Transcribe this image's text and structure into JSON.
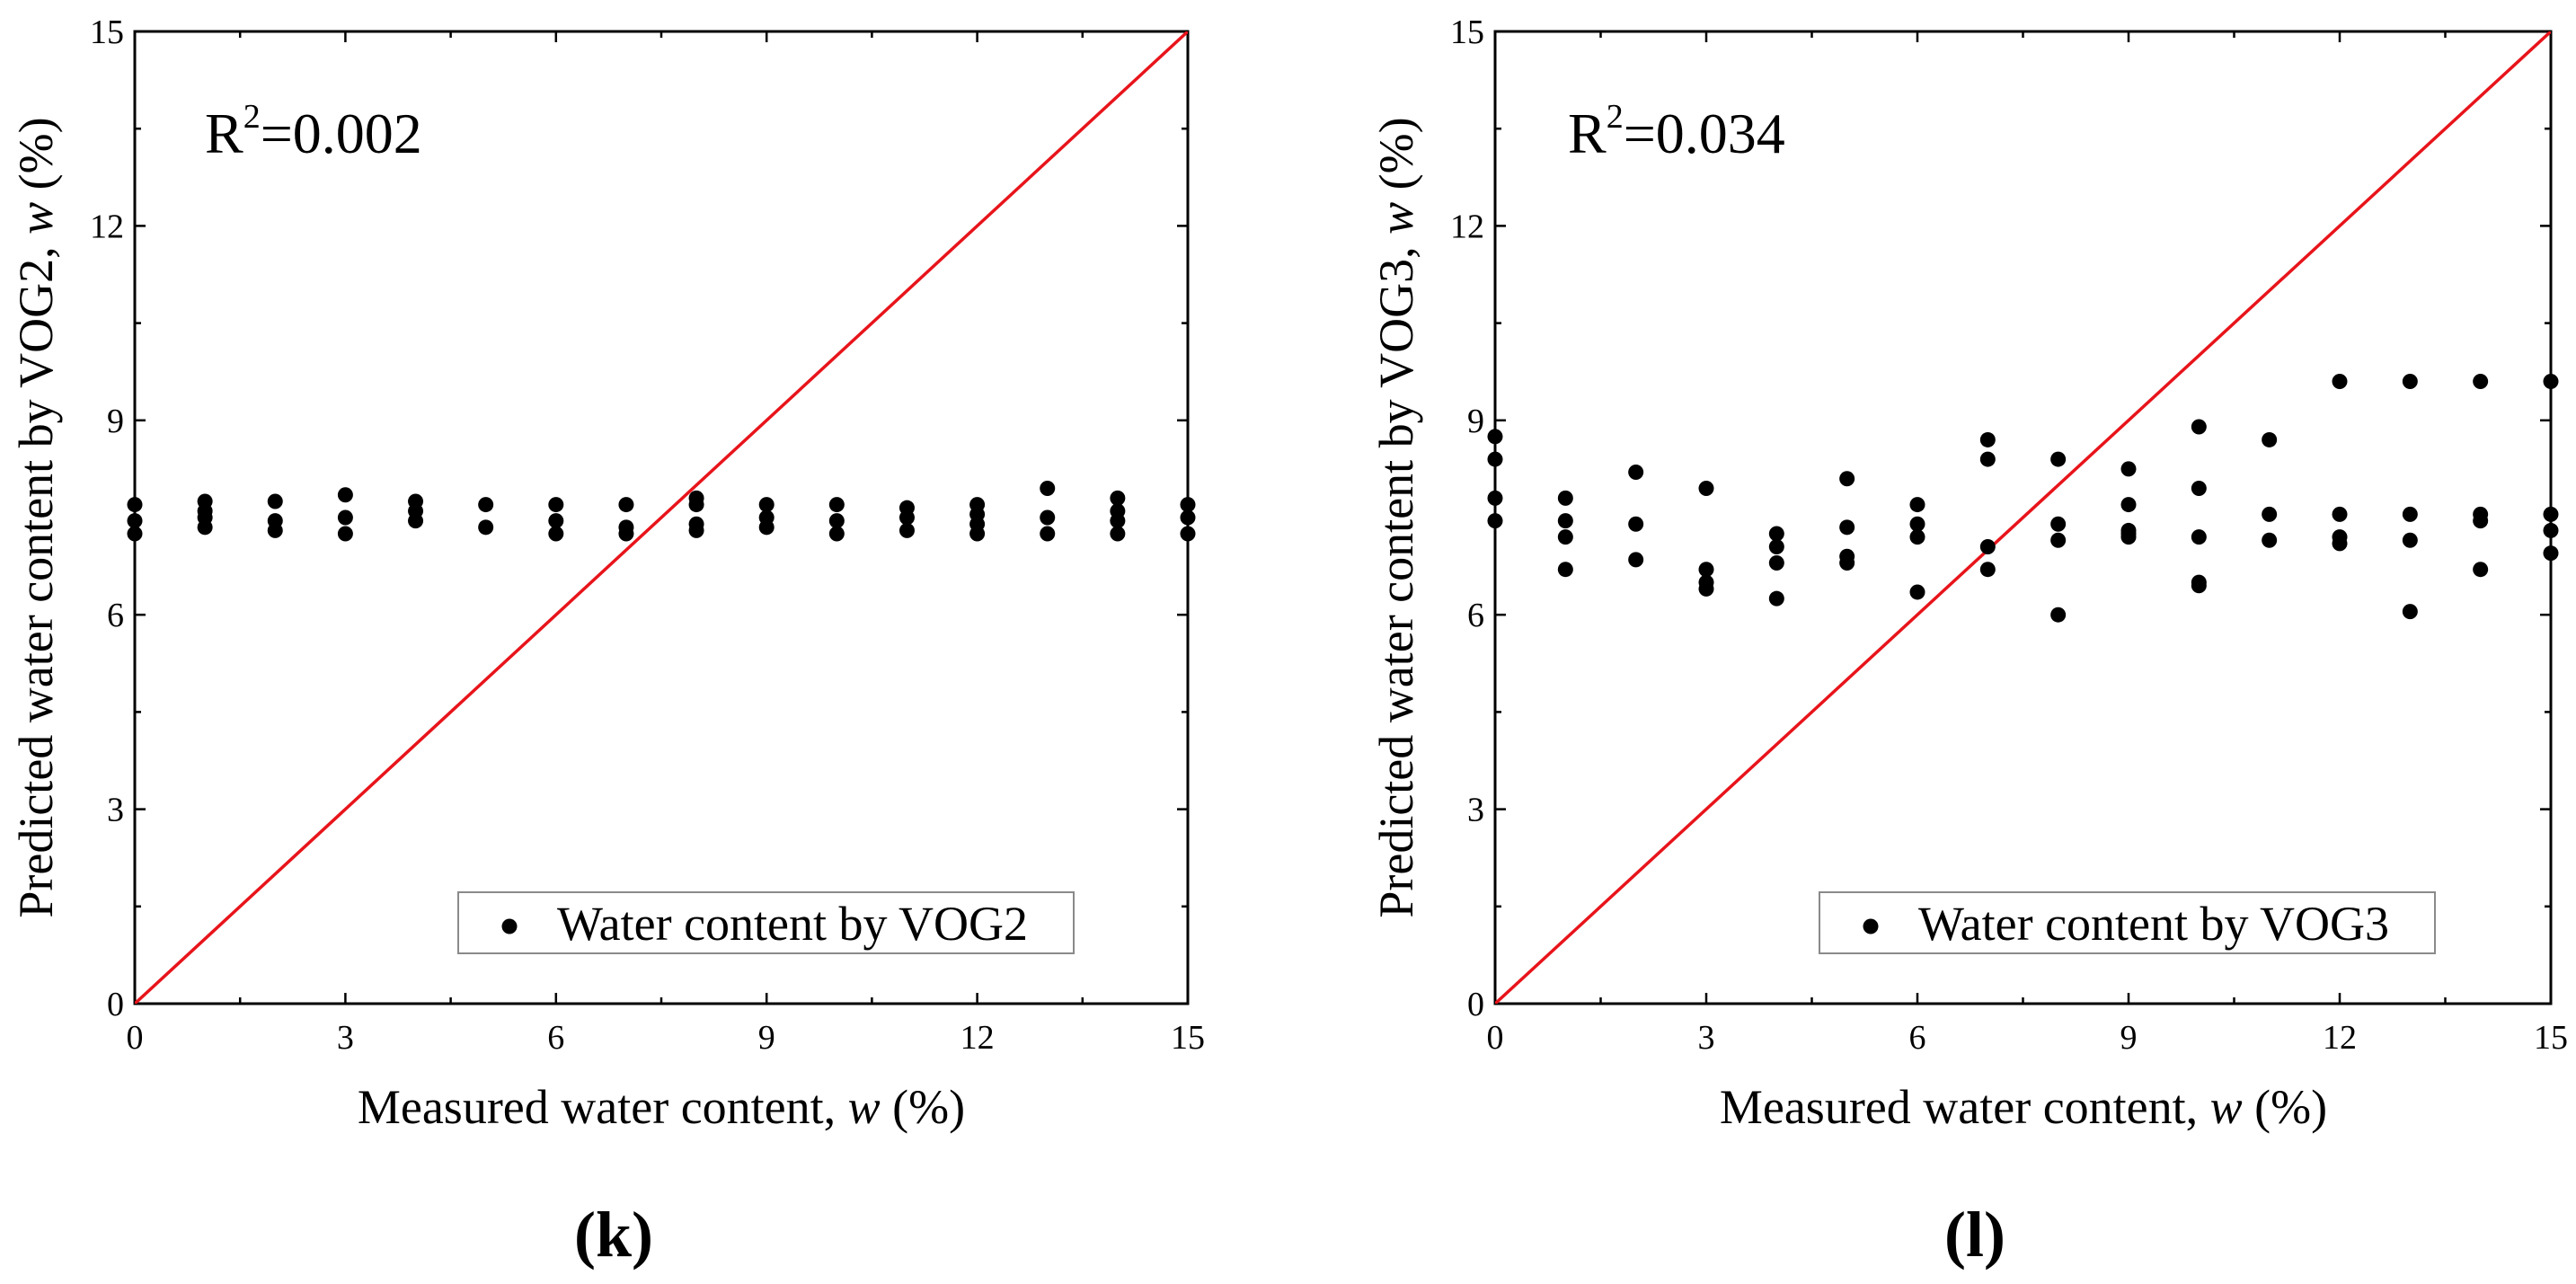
{
  "chart_data": [
    {
      "type": "scatter",
      "panel_label": "(k)",
      "xlabel": "Measured water content, ",
      "xlabel_var": "w",
      "xlabel_unit": " (%)",
      "ylabel": "Predicted water content by VOG2, ",
      "ylabel_var": "w",
      "ylabel_unit": " (%)",
      "xlim": [
        0,
        15
      ],
      "ylim": [
        0,
        15
      ],
      "xticks": [
        "0",
        "3",
        "6",
        "9",
        "12",
        "15"
      ],
      "yticks": [
        "0",
        "3",
        "6",
        "9",
        "12",
        "15"
      ],
      "annotation": {
        "base": "R",
        "sup": "2",
        "value": "=0.002"
      },
      "legend": {
        "label": "Water content by VOG2",
        "position": "bottom-right"
      },
      "reference_line": {
        "name": "1:1 line",
        "color": "#e8141b",
        "from": [
          0,
          0
        ],
        "to": [
          15,
          15
        ]
      },
      "series": [
        {
          "name": "Water content by VOG2",
          "color": "#000000",
          "x": [
            0,
            0,
            0,
            1,
            1,
            1,
            1,
            2,
            2,
            2,
            3,
            3,
            3,
            4,
            4,
            4,
            5,
            5,
            6,
            6,
            6,
            7,
            7,
            7,
            8,
            8,
            8,
            8,
            9,
            9,
            9,
            10,
            10,
            10,
            11,
            11,
            11,
            12,
            12,
            12,
            12,
            13,
            13,
            13,
            14,
            14,
            14,
            14,
            15,
            15,
            15
          ],
          "y": [
            7.7,
            7.45,
            7.25,
            7.75,
            7.6,
            7.5,
            7.35,
            7.75,
            7.45,
            7.3,
            7.85,
            7.5,
            7.25,
            7.75,
            7.6,
            7.45,
            7.7,
            7.35,
            7.7,
            7.45,
            7.25,
            7.7,
            7.35,
            7.25,
            7.8,
            7.7,
            7.4,
            7.3,
            7.7,
            7.5,
            7.35,
            7.7,
            7.45,
            7.25,
            7.65,
            7.5,
            7.3,
            7.7,
            7.55,
            7.4,
            7.25,
            7.95,
            7.5,
            7.25,
            7.8,
            7.6,
            7.45,
            7.25,
            7.7,
            7.5,
            7.25
          ]
        }
      ]
    },
    {
      "type": "scatter",
      "panel_label": "(l)",
      "xlabel": "Measured water content, ",
      "xlabel_var": "w",
      "xlabel_unit": " (%)",
      "ylabel": "Predicted water content by VOG3, ",
      "ylabel_var": "w",
      "ylabel_unit": " (%)",
      "xlim": [
        0,
        15
      ],
      "ylim": [
        0,
        15
      ],
      "xticks": [
        "0",
        "3",
        "6",
        "9",
        "12",
        "15"
      ],
      "yticks": [
        "0",
        "3",
        "6",
        "9",
        "12",
        "15"
      ],
      "annotation": {
        "base": "R",
        "sup": "2",
        "value": "=0.034"
      },
      "legend": {
        "label": "Water content by VOG3",
        "position": "bottom-right"
      },
      "reference_line": {
        "name": "1:1 line",
        "color": "#e8141b",
        "from": [
          0,
          0
        ],
        "to": [
          15,
          15
        ]
      },
      "series": [
        {
          "name": "Water content by VOG3",
          "color": "#000000",
          "x": [
            0,
            0,
            0,
            0,
            1,
            1,
            1,
            1,
            2,
            2,
            2,
            3,
            3,
            3,
            3,
            4,
            4,
            4,
            4,
            5,
            5,
            5,
            5,
            6,
            6,
            6,
            6,
            7,
            7,
            7,
            7,
            8,
            8,
            8,
            8,
            9,
            9,
            9,
            9,
            9,
            10,
            10,
            10,
            10,
            10,
            11,
            11,
            11,
            12,
            12,
            12,
            12,
            13,
            13,
            13,
            13,
            14,
            14,
            14,
            14,
            15,
            15,
            15,
            15
          ],
          "y": [
            8.75,
            8.4,
            7.8,
            7.45,
            7.8,
            7.45,
            7.2,
            6.7,
            8.2,
            7.4,
            6.85,
            7.95,
            6.7,
            6.5,
            6.4,
            7.25,
            7.05,
            6.8,
            6.25,
            8.1,
            7.35,
            6.9,
            6.8,
            7.7,
            7.4,
            7.2,
            6.35,
            8.7,
            8.4,
            7.05,
            6.7,
            8.4,
            7.4,
            7.15,
            6.0,
            8.25,
            7.7,
            7.3,
            7.25,
            7.2,
            8.9,
            7.95,
            7.2,
            6.5,
            6.45,
            8.7,
            7.55,
            7.15,
            9.6,
            7.55,
            7.2,
            7.1,
            9.6,
            7.55,
            7.15,
            6.05,
            9.6,
            7.55,
            7.45,
            6.7,
            9.6,
            7.55,
            7.3,
            6.95
          ]
        }
      ]
    }
  ]
}
